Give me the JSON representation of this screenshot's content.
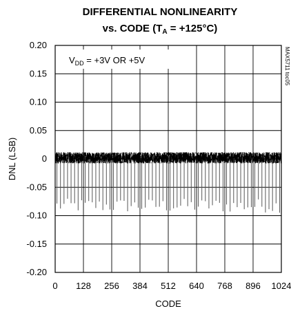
{
  "chart_data": {
    "type": "line",
    "title_line1": "DIFFERENTIAL NONLINEARITY",
    "title_line2_prefix": "vs. CODE (T",
    "title_line2_sub": "A",
    "title_line2_suffix": " = +125°C)",
    "xlabel": "CODE",
    "ylabel": "DNL (LSB)",
    "xlim": [
      0,
      1024
    ],
    "ylim": [
      -0.2,
      0.2
    ],
    "x_ticks": [
      "0",
      "128",
      "256",
      "384",
      "512",
      "640",
      "768",
      "896",
      "1024"
    ],
    "x_tick_values": [
      0,
      128,
      256,
      384,
      512,
      640,
      768,
      896,
      1024
    ],
    "y_ticks": [
      "0.20",
      "0.15",
      "0.10",
      "0.05",
      "0",
      "-0.05",
      "-0.10",
      "-0.15",
      "-0.20"
    ],
    "y_tick_values": [
      0.2,
      0.15,
      0.1,
      0.05,
      0,
      -0.05,
      -0.1,
      -0.15,
      -0.2
    ],
    "grid": true,
    "annotation_prefix": "V",
    "annotation_sub": "DD",
    "annotation_suffix": " = +3V OR +5V",
    "side_label": "MAX5711 toc05",
    "series": [
      {
        "color": "#000000",
        "baseline_band": [
          -0.008,
          0.012
        ],
        "spike_period_codes": 16,
        "spike_min": -0.095,
        "spike_max": -0.07
      }
    ]
  }
}
